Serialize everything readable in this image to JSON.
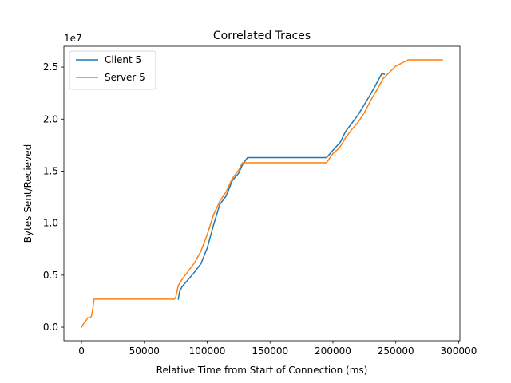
{
  "chart_data": {
    "type": "line",
    "title": "Correlated Traces",
    "xlabel": "Relative Time from Start of Connection (ms)",
    "ylabel": "Bytes Sent/Recieved",
    "y_offset_text": "1e7",
    "xlim": [
      -14000,
      301000
    ],
    "ylim": [
      -1300000,
      27000000
    ],
    "x_ticks": [
      0,
      50000,
      100000,
      150000,
      200000,
      250000,
      300000
    ],
    "x_tick_labels": [
      "0",
      "50000",
      "100000",
      "150000",
      "200000",
      "250000",
      "300000"
    ],
    "y_ticks": [
      0,
      5000000,
      10000000,
      15000000,
      20000000,
      25000000
    ],
    "y_tick_labels": [
      "0.0",
      "0.5",
      "1.0",
      "1.5",
      "2.0",
      "2.5"
    ],
    "grid": false,
    "legend_position": "top-left",
    "series": [
      {
        "name": "Client 5",
        "color": "#1f77b4",
        "points": [
          [
            77000,
            2700000
          ],
          [
            78000,
            3400000
          ],
          [
            80000,
            3900000
          ],
          [
            85000,
            4600000
          ],
          [
            90000,
            5300000
          ],
          [
            95000,
            6100000
          ],
          [
            100000,
            7600000
          ],
          [
            105000,
            9800000
          ],
          [
            110000,
            11800000
          ],
          [
            115000,
            12600000
          ],
          [
            120000,
            14100000
          ],
          [
            125000,
            14800000
          ],
          [
            128000,
            15600000
          ],
          [
            132000,
            16300000
          ],
          [
            195000,
            16300000
          ],
          [
            200000,
            17000000
          ],
          [
            203000,
            17400000
          ],
          [
            206000,
            17800000
          ],
          [
            210000,
            18800000
          ],
          [
            215000,
            19600000
          ],
          [
            220000,
            20400000
          ],
          [
            225000,
            21400000
          ],
          [
            230000,
            22400000
          ],
          [
            235000,
            23500000
          ],
          [
            239000,
            24400000
          ],
          [
            241000,
            24300000
          ]
        ]
      },
      {
        "name": "Server 5",
        "color": "#ff7f0e",
        "points": [
          [
            0,
            0
          ],
          [
            1000,
            200000
          ],
          [
            2000,
            400000
          ],
          [
            4000,
            700000
          ],
          [
            5000,
            900000
          ],
          [
            7000,
            900000
          ],
          [
            8000,
            1100000
          ],
          [
            9000,
            1800000
          ],
          [
            10000,
            2700000
          ],
          [
            74000,
            2700000
          ],
          [
            75000,
            2900000
          ],
          [
            77000,
            4000000
          ],
          [
            80000,
            4600000
          ],
          [
            85000,
            5400000
          ],
          [
            90000,
            6200000
          ],
          [
            95000,
            7300000
          ],
          [
            100000,
            8900000
          ],
          [
            105000,
            10800000
          ],
          [
            110000,
            12100000
          ],
          [
            115000,
            13000000
          ],
          [
            120000,
            14300000
          ],
          [
            125000,
            15100000
          ],
          [
            128000,
            15800000
          ],
          [
            195000,
            15800000
          ],
          [
            200000,
            16700000
          ],
          [
            205000,
            17200000
          ],
          [
            210000,
            18200000
          ],
          [
            215000,
            19000000
          ],
          [
            220000,
            19700000
          ],
          [
            225000,
            20600000
          ],
          [
            230000,
            21800000
          ],
          [
            235000,
            22800000
          ],
          [
            240000,
            23900000
          ],
          [
            245000,
            24500000
          ],
          [
            250000,
            25100000
          ],
          [
            255000,
            25400000
          ],
          [
            260000,
            25700000
          ],
          [
            287000,
            25700000
          ]
        ]
      }
    ]
  }
}
